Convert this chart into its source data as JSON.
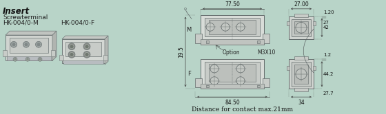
{
  "bg": "#b8d4c8",
  "title": "Insert",
  "sub1": "Screwterminal",
  "label_m": "HK-004/0-M",
  "label_f": "HK-004/0-F",
  "dim_77": "77.50",
  "dim_84": "84.50",
  "dim_27w": "27.00",
  "dim_34": "34",
  "dim_195": "19.5",
  "dim_42": "42",
  "dim_27": "27",
  "dim_120": "1.20",
  "dim_442": "44.2",
  "dim_277": "27.7",
  "dim_12": "1.2",
  "option": "Option",
  "m3x10": "M3X10",
  "footer": "Distance for contact max.21mm",
  "gc": "#a0a8a0",
  "dc": "#707878",
  "lc": "#606868",
  "ac": "#404040"
}
